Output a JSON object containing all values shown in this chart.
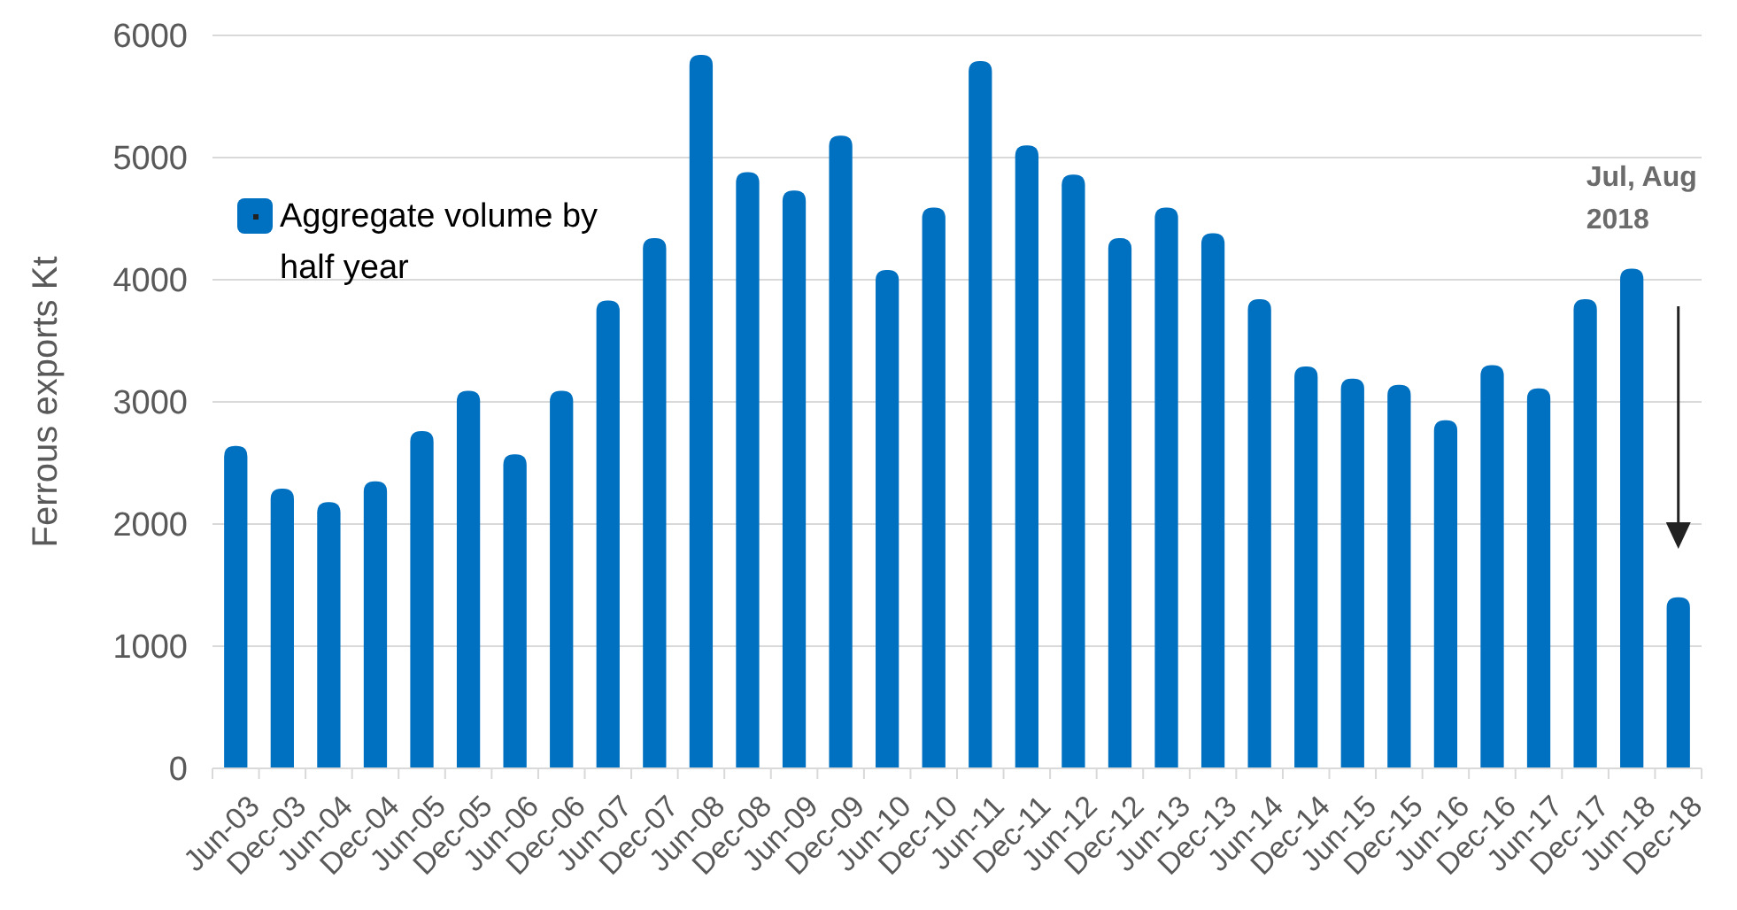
{
  "chart_data": {
    "type": "bar",
    "ylabel": "Ferrous exports Kt",
    "categories": [
      "Jun-03",
      "Dec-03",
      "Jun-04",
      "Dec-04",
      "Jun-05",
      "Dec-05",
      "Jun-06",
      "Dec-06",
      "Jun-07",
      "Dec-07",
      "Jun-08",
      "Dec-08",
      "Jun-09",
      "Dec-09",
      "Jun-10",
      "Dec-10",
      "Jun-11",
      "Dec-11",
      "Jun-12",
      "Dec-12",
      "Jun-13",
      "Dec-13",
      "Jun-14",
      "Dec-14",
      "Jun-15",
      "Dec-15",
      "Jun-16",
      "Dec-16",
      "Jun-17",
      "Dec-17",
      "Jun-18",
      "Dec-18"
    ],
    "series": [
      {
        "name": "Aggregate volume by half year",
        "color": "#0070c0",
        "values": [
          2640,
          2290,
          2180,
          2350,
          2760,
          3090,
          2570,
          3090,
          3830,
          4340,
          5840,
          4880,
          4730,
          5180,
          4080,
          4590,
          5790,
          5100,
          4860,
          4340,
          4590,
          4380,
          3840,
          3290,
          3190,
          3140,
          2850,
          3300,
          3110,
          3840,
          4090,
          1400
        ]
      }
    ],
    "ylim": [
      0,
      6000
    ],
    "yticks": [
      0,
      1000,
      2000,
      3000,
      4000,
      5000,
      6000
    ],
    "grid": "y",
    "legend": "top left",
    "annotations": [
      "Jul, Aug 2018"
    ]
  }
}
